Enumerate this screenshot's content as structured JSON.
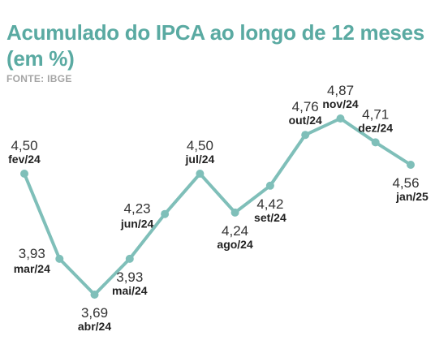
{
  "header": {
    "title": "Acumulado do IPCA ao longo de 12 meses (em %)",
    "source": "FONTE: IBGE"
  },
  "colors": {
    "accent": "#5aaaa2",
    "line": "#7fbfb9",
    "text": "#222222"
  },
  "chart_data": {
    "type": "line",
    "title": "Acumulado do IPCA ao longo de 12 meses (em %)",
    "xlabel": "",
    "ylabel": "",
    "grid": false,
    "legend": "none",
    "ylim": [
      3.5,
      5.0
    ],
    "categories": [
      "fev/24",
      "mar/24",
      "abr/24",
      "mai/24",
      "jun/24",
      "jul/24",
      "ago/24",
      "set/24",
      "out/24",
      "nov/24",
      "dez/24",
      "jan/25"
    ],
    "series": [
      {
        "values": [
          4.5,
          3.93,
          3.69,
          3.93,
          4.23,
          4.5,
          4.24,
          4.42,
          4.76,
          4.87,
          4.71,
          4.56
        ],
        "labels": [
          "4,50",
          "3,93",
          "3,69",
          "3,93",
          "4,23",
          "4,50",
          "4,24",
          "4,42",
          "4,76",
          "4,87",
          "4,71",
          "4,56"
        ]
      }
    ]
  }
}
